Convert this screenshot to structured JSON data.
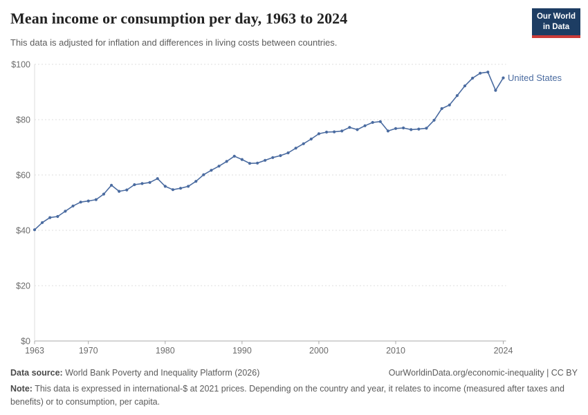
{
  "header": {
    "title": "Mean income or consumption per day, 1963 to 2024",
    "subtitle": "This data is adjusted for inflation and differences in living costs between countries.",
    "logo": {
      "line1": "Our World",
      "line2": "in Data"
    }
  },
  "chart_data": {
    "type": "line",
    "title": "Mean income or consumption per day, 1963 to 2024",
    "xlabel": "",
    "ylabel": "",
    "xlim": [
      1963,
      2024
    ],
    "ylim": [
      0,
      100
    ],
    "grid": "horizontal-dashed",
    "legend_position": "end-of-line-label",
    "x_ticks": [
      1963,
      1970,
      1980,
      1990,
      2000,
      2010,
      2024
    ],
    "y_ticks": [
      "$0",
      "$20",
      "$40",
      "$60",
      "$80",
      "$100"
    ],
    "y_tick_values": [
      0,
      20,
      40,
      60,
      80,
      100
    ],
    "series": [
      {
        "name": "United States",
        "color": "#4a6ba0",
        "x": [
          1963,
          1964,
          1965,
          1966,
          1967,
          1968,
          1969,
          1970,
          1971,
          1972,
          1973,
          1974,
          1975,
          1976,
          1977,
          1978,
          1979,
          1980,
          1981,
          1982,
          1983,
          1984,
          1985,
          1986,
          1987,
          1988,
          1989,
          1990,
          1991,
          1992,
          1993,
          1994,
          1995,
          1996,
          1997,
          1998,
          1999,
          2000,
          2001,
          2002,
          2003,
          2004,
          2005,
          2006,
          2007,
          2008,
          2009,
          2010,
          2011,
          2012,
          2013,
          2014,
          2015,
          2016,
          2017,
          2018,
          2019,
          2020,
          2021,
          2022,
          2023,
          2024
        ],
        "values": [
          40.2,
          42.8,
          44.6,
          45.0,
          46.9,
          48.8,
          50.2,
          50.6,
          51.1,
          53.1,
          56.3,
          54.1,
          54.6,
          56.5,
          56.9,
          57.3,
          58.7,
          55.9,
          54.7,
          55.2,
          55.9,
          57.7,
          60.1,
          61.7,
          63.2,
          64.9,
          66.8,
          65.6,
          64.2,
          64.3,
          65.3,
          66.3,
          67.0,
          68.0,
          69.7,
          71.3,
          73.0,
          74.9,
          75.5,
          75.6,
          75.9,
          77.2,
          76.4,
          77.8,
          79.0,
          79.3,
          75.9,
          76.8,
          77.0,
          76.4,
          76.6,
          76.9,
          79.8,
          84.0,
          85.3,
          88.7,
          92.2,
          95.0,
          96.8,
          97.2,
          90.6,
          95.1
        ]
      }
    ]
  },
  "footer": {
    "datasource_label": "Data source:",
    "datasource": " World Bank Poverty and Inequality Platform (2026)",
    "citation": "OurWorldinData.org/economic-inequality | CC BY",
    "note_label": "Note:",
    "note": " This data is expressed in international-$ at 2021 prices. Depending on the country and year, it relates to income (measured after taxes and benefits) or to consumption, per capita."
  },
  "colors": {
    "line_blue": "#4a6ba0",
    "logo_navy": "#1d3d63",
    "logo_red": "#cb3b38",
    "axis_text": "#6b6b6b",
    "gridline": "#dcdcdc",
    "axis_line": "#a8a8a8"
  }
}
